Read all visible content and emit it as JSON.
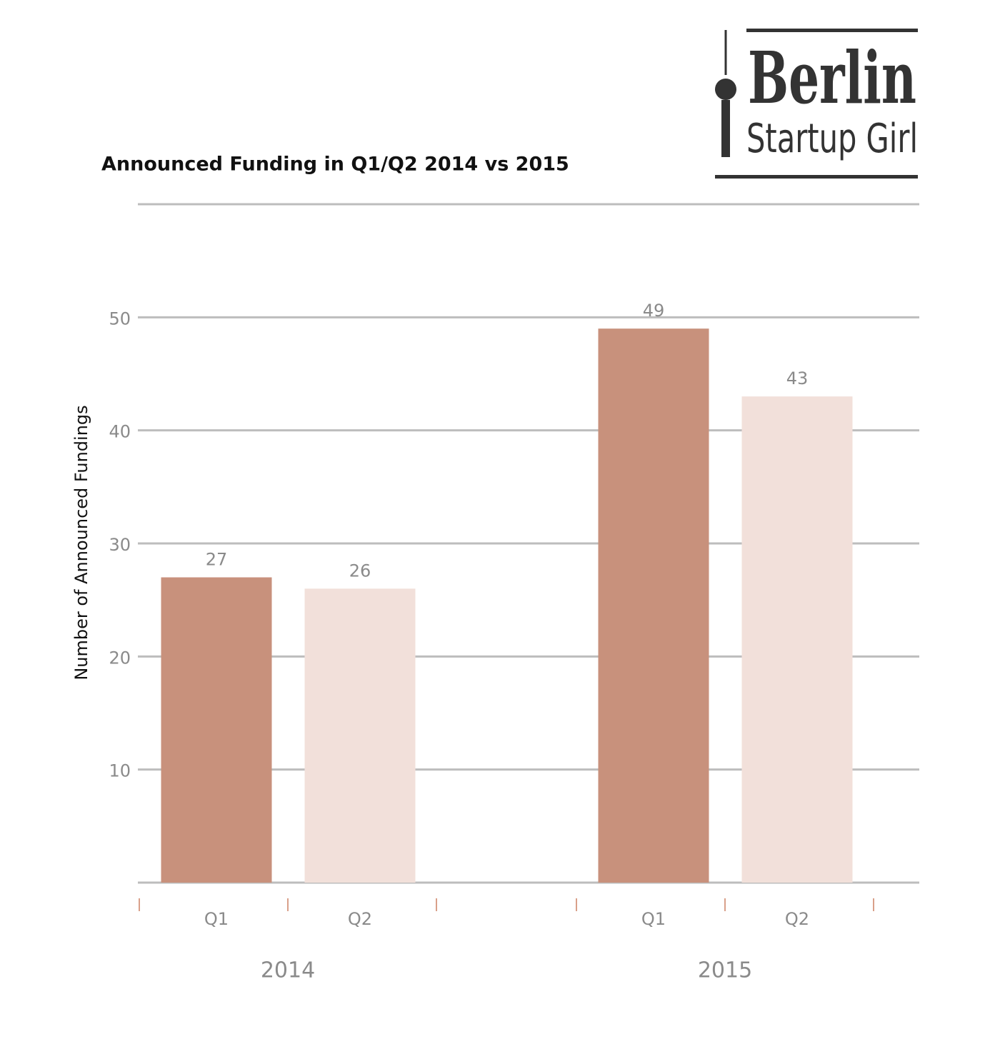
{
  "logo": {
    "line1": "Berlin",
    "line2": "Startup Girl"
  },
  "chart_data": {
    "type": "bar",
    "title": "Announced Funding in Q1/Q2 2014 vs 2015",
    "y_label": "Number of Announced Fundings",
    "categories": [
      "2014",
      "2015"
    ],
    "series": [
      {
        "name": "Q1",
        "color": "#c8917c",
        "values": [
          27,
          49
        ]
      },
      {
        "name": "Q2",
        "color": "#f2e0da",
        "values": [
          26,
          43
        ]
      }
    ],
    "ylim": [
      0,
      60
    ],
    "yticks": [
      10,
      20,
      30,
      40,
      50
    ],
    "grid": true
  }
}
